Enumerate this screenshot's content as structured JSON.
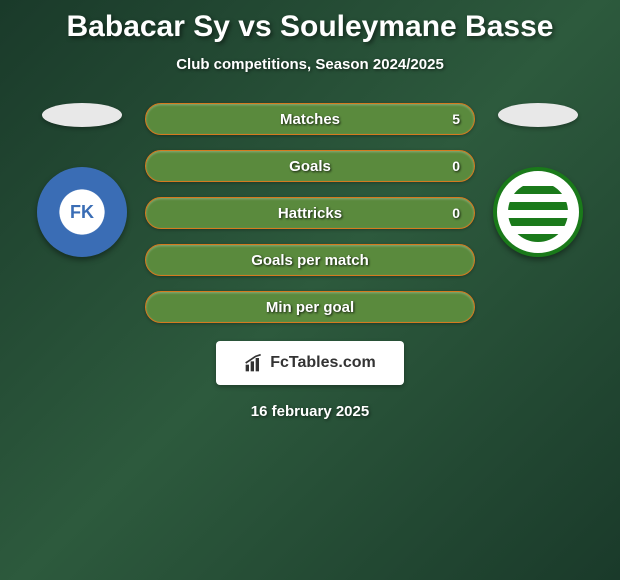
{
  "header": {
    "title": "Babacar Sy vs Souleymane Basse",
    "subtitle": "Club competitions, Season 2024/2025"
  },
  "players": {
    "left": {
      "marker_color": "#e8e8e8",
      "badge_text": "FK",
      "badge_label": "teplice-badge"
    },
    "right": {
      "marker_color": "#e8e8e8",
      "badge_label": "karvina-badge"
    }
  },
  "stats": [
    {
      "label": "Matches",
      "value": "5",
      "bg_color": "#5a8a3d",
      "border_color": "#d47a1f"
    },
    {
      "label": "Goals",
      "value": "0",
      "bg_color": "#5a8a3d",
      "border_color": "#d47a1f"
    },
    {
      "label": "Hattricks",
      "value": "0",
      "bg_color": "#5a8a3d",
      "border_color": "#d47a1f"
    },
    {
      "label": "Goals per match",
      "value": "",
      "bg_color": "#5a8a3d",
      "border_color": "#d47a1f"
    },
    {
      "label": "Min per goal",
      "value": "",
      "bg_color": "#5a8a3d",
      "border_color": "#d47a1f"
    }
  ],
  "footer": {
    "watermark": "FcTables.com",
    "date": "16 february 2025"
  },
  "styling": {
    "background_gradient": [
      "#1a3a2a",
      "#2d5a3d",
      "#1a3a2a"
    ],
    "title_color": "#ffffff",
    "title_fontsize": 30,
    "subtitle_fontsize": 15,
    "pill_height": 32,
    "pill_radius": 16,
    "pill_label_fontsize": 15,
    "watermark_bg": "#ffffff"
  }
}
